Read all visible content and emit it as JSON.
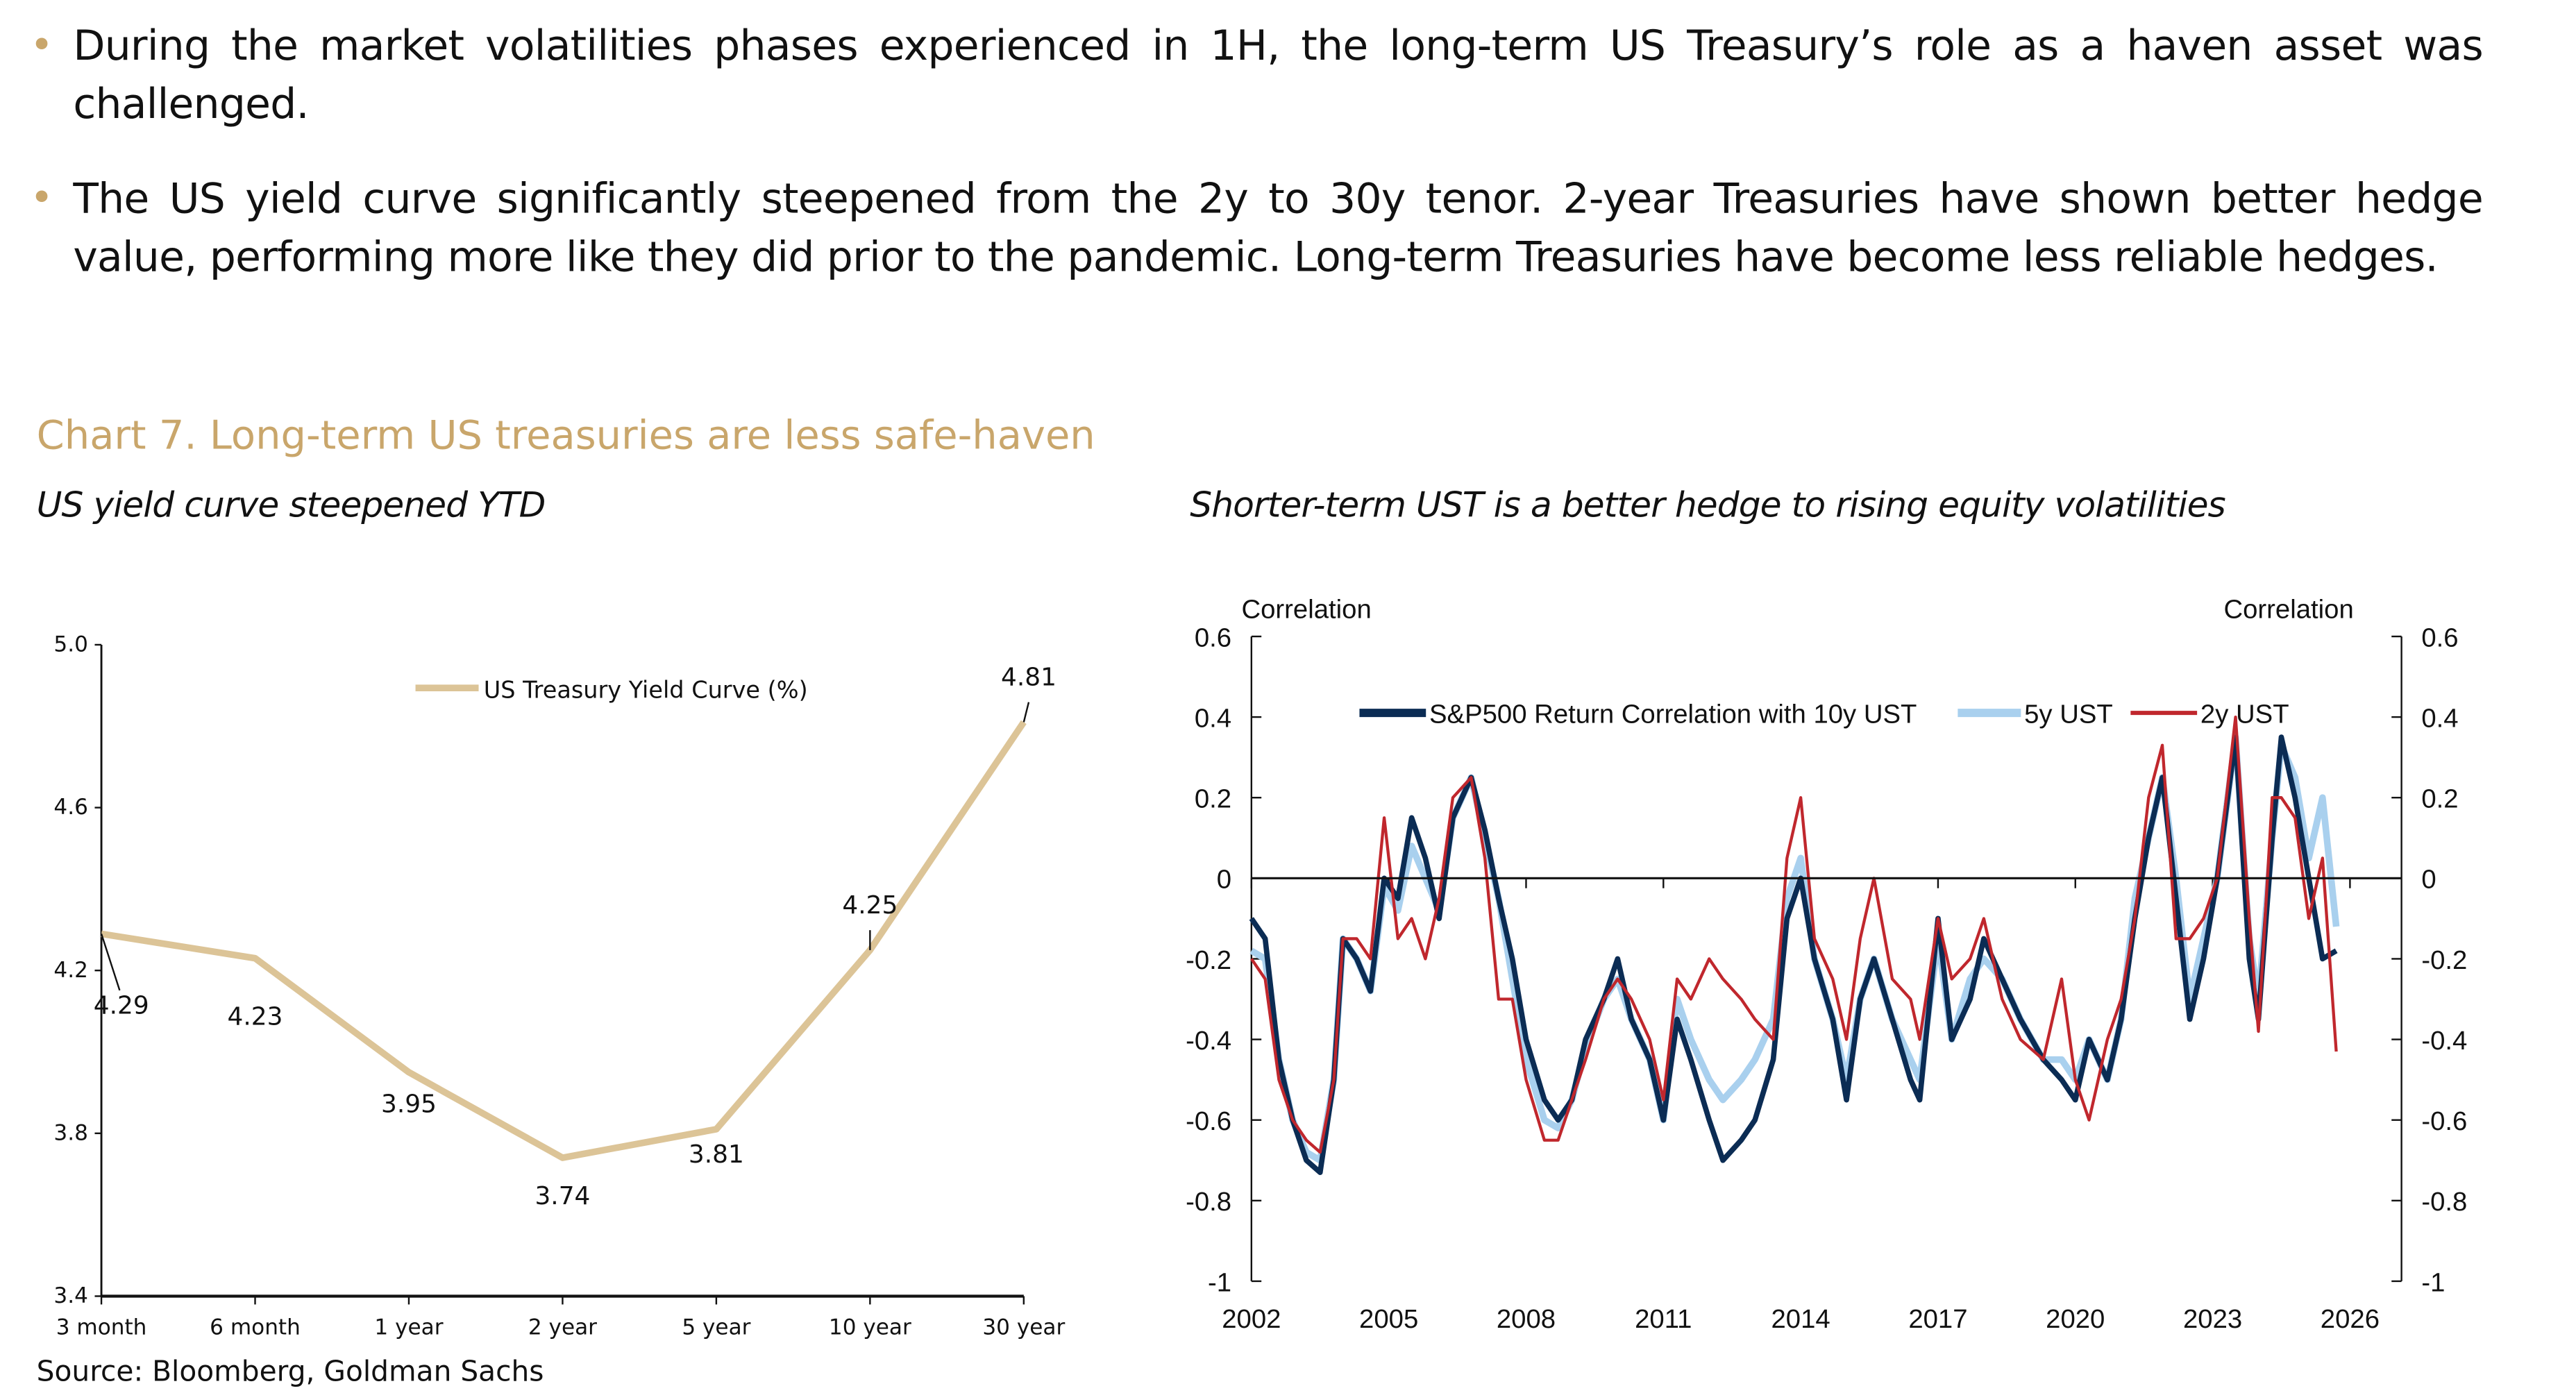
{
  "bullets": [
    "During the market volatilities phases experienced in 1H, the long-term US Treasury’s role as a haven asset was challenged.",
    "The US yield curve significantly steepened from the 2y to 30y tenor. 2-year Treasuries have shown better hedge value, performing more like they did prior to the pandemic. Long-term Treasuries have become less reliable hedges."
  ],
  "chart_title": "Chart 7. Long-term US treasuries are less safe-haven",
  "source": "Source: Bloomberg, Goldman Sachs",
  "colors": {
    "accent": "#C9A66B",
    "yield_line": "#DCC497",
    "navy": "#0B2C54",
    "light_blue": "#A9D0EE",
    "red": "#C0272D"
  },
  "chart_data": [
    {
      "type": "line",
      "title": "US yield curve steepened YTD",
      "categories": [
        "3 month",
        "6 month",
        "1 year",
        "2 year",
        "5 year",
        "10 year",
        "30 year"
      ],
      "series": [
        {
          "name": "US Treasury Yield Curve (%)",
          "values": [
            4.29,
            4.23,
            3.95,
            3.74,
            3.81,
            4.25,
            4.81
          ]
        }
      ],
      "ylim": [
        3.4,
        5.0
      ],
      "yticks": [
        "3.4",
        "3.8",
        "4.2",
        "4.6",
        "5.0"
      ],
      "legend": "top-center",
      "data_labels": true
    },
    {
      "type": "line",
      "title": "Shorter-term UST is a better hedge to rising equity volatilities",
      "ylabel_left": "Correlation",
      "ylabel_right": "Correlation",
      "ylim": [
        -1,
        0.6
      ],
      "yticks": [
        "0.6",
        "0.4",
        "0.2",
        "0",
        "-0.2",
        "-0.4",
        "-0.6",
        "-0.8",
        "-1"
      ],
      "xlim": [
        2002,
        2026
      ],
      "xticks": [
        "2002",
        "2005",
        "2008",
        "2011",
        "2014",
        "2017",
        "2020",
        "2023",
        "2026"
      ],
      "legend": "top-center",
      "series": [
        {
          "name": "S&P500 Return Correlation with 10y UST",
          "color": "#0B2C54",
          "x": [
            2002.0,
            2002.3,
            2002.6,
            2002.9,
            2003.2,
            2003.5,
            2003.8,
            2004.0,
            2004.3,
            2004.6,
            2004.9,
            2005.2,
            2005.5,
            2005.8,
            2006.1,
            2006.4,
            2006.8,
            2007.1,
            2007.4,
            2007.7,
            2008.0,
            2008.4,
            2008.7,
            2009.0,
            2009.3,
            2009.7,
            2010.0,
            2010.3,
            2010.7,
            2011.0,
            2011.3,
            2011.6,
            2012.0,
            2012.3,
            2012.7,
            2013.0,
            2013.4,
            2013.7,
            2014.0,
            2014.3,
            2014.7,
            2015.0,
            2015.3,
            2015.6,
            2016.0,
            2016.4,
            2016.6,
            2017.0,
            2017.3,
            2017.7,
            2018.0,
            2018.4,
            2018.8,
            2019.3,
            2019.7,
            2020.0,
            2020.3,
            2020.7,
            2021.0,
            2021.3,
            2021.6,
            2021.9,
            2022.2,
            2022.5,
            2022.8,
            2023.1,
            2023.5,
            2023.8,
            2024.0,
            2024.3,
            2024.5,
            2024.8,
            2025.1,
            2025.4,
            2025.7
          ],
          "values": [
            -0.1,
            -0.15,
            -0.45,
            -0.6,
            -0.7,
            -0.73,
            -0.5,
            -0.15,
            -0.2,
            -0.28,
            0.0,
            -0.05,
            0.15,
            0.05,
            -0.1,
            0.15,
            0.25,
            0.12,
            -0.05,
            -0.2,
            -0.4,
            -0.55,
            -0.6,
            -0.55,
            -0.4,
            -0.3,
            -0.2,
            -0.35,
            -0.45,
            -0.6,
            -0.35,
            -0.45,
            -0.6,
            -0.7,
            -0.65,
            -0.6,
            -0.45,
            -0.1,
            0.0,
            -0.2,
            -0.35,
            -0.55,
            -0.3,
            -0.2,
            -0.35,
            -0.5,
            -0.55,
            -0.1,
            -0.4,
            -0.3,
            -0.15,
            -0.25,
            -0.35,
            -0.45,
            -0.5,
            -0.55,
            -0.4,
            -0.5,
            -0.35,
            -0.1,
            0.1,
            0.25,
            -0.05,
            -0.35,
            -0.2,
            0.0,
            0.35,
            -0.2,
            -0.35,
            0.1,
            0.35,
            0.2,
            0.0,
            -0.2,
            -0.18
          ]
        },
        {
          "name": "5y UST",
          "color": "#A9D0EE",
          "x": [
            2002.0,
            2002.3,
            2002.6,
            2002.9,
            2003.2,
            2003.5,
            2003.8,
            2004.0,
            2004.3,
            2004.6,
            2004.9,
            2005.2,
            2005.5,
            2005.8,
            2006.1,
            2006.4,
            2006.8,
            2007.1,
            2007.4,
            2007.7,
            2008.0,
            2008.4,
            2008.7,
            2009.0,
            2009.3,
            2009.7,
            2010.0,
            2010.3,
            2010.7,
            2011.0,
            2011.3,
            2011.6,
            2012.0,
            2012.3,
            2012.7,
            2013.0,
            2013.4,
            2013.7,
            2014.0,
            2014.3,
            2014.7,
            2015.0,
            2015.3,
            2015.6,
            2016.0,
            2016.4,
            2016.6,
            2017.0,
            2017.3,
            2017.7,
            2018.0,
            2018.4,
            2018.8,
            2019.3,
            2019.7,
            2020.0,
            2020.3,
            2020.7,
            2021.0,
            2021.3,
            2021.6,
            2021.9,
            2022.2,
            2022.5,
            2022.8,
            2023.1,
            2023.5,
            2023.8,
            2024.0,
            2024.3,
            2024.5,
            2024.8,
            2025.1,
            2025.4,
            2025.7
          ],
          "values": [
            -0.18,
            -0.2,
            -0.45,
            -0.6,
            -0.68,
            -0.7,
            -0.5,
            -0.15,
            -0.2,
            -0.28,
            -0.02,
            -0.08,
            0.08,
            0.0,
            -0.08,
            0.15,
            0.25,
            0.1,
            -0.05,
            -0.25,
            -0.45,
            -0.6,
            -0.62,
            -0.55,
            -0.42,
            -0.3,
            -0.25,
            -0.35,
            -0.45,
            -0.6,
            -0.3,
            -0.4,
            -0.5,
            -0.55,
            -0.5,
            -0.45,
            -0.35,
            -0.05,
            0.05,
            -0.2,
            -0.35,
            -0.5,
            -0.3,
            -0.2,
            -0.35,
            -0.45,
            -0.5,
            -0.15,
            -0.4,
            -0.25,
            -0.2,
            -0.25,
            -0.35,
            -0.45,
            -0.45,
            -0.5,
            -0.4,
            -0.5,
            -0.35,
            -0.05,
            0.1,
            0.25,
            0.0,
            -0.3,
            -0.15,
            0.0,
            0.35,
            -0.15,
            -0.3,
            0.1,
            0.33,
            0.25,
            0.05,
            0.2,
            -0.12
          ]
        },
        {
          "name": "2y UST",
          "color": "#C0272D",
          "x": [
            2002.0,
            2002.3,
            2002.6,
            2002.9,
            2003.2,
            2003.5,
            2003.8,
            2004.0,
            2004.3,
            2004.6,
            2004.9,
            2005.2,
            2005.5,
            2005.8,
            2006.1,
            2006.4,
            2006.8,
            2007.1,
            2007.4,
            2007.7,
            2008.0,
            2008.4,
            2008.7,
            2009.0,
            2009.3,
            2009.7,
            2010.0,
            2010.3,
            2010.7,
            2011.0,
            2011.3,
            2011.6,
            2012.0,
            2012.3,
            2012.7,
            2013.0,
            2013.4,
            2013.7,
            2014.0,
            2014.3,
            2014.7,
            2015.0,
            2015.3,
            2015.6,
            2016.0,
            2016.4,
            2016.6,
            2017.0,
            2017.3,
            2017.7,
            2018.0,
            2018.4,
            2018.8,
            2019.3,
            2019.7,
            2020.0,
            2020.3,
            2020.7,
            2021.0,
            2021.3,
            2021.6,
            2021.9,
            2022.2,
            2022.5,
            2022.8,
            2023.1,
            2023.5,
            2023.8,
            2024.0,
            2024.3,
            2024.5,
            2024.8,
            2025.1,
            2025.4,
            2025.7
          ],
          "values": [
            -0.2,
            -0.25,
            -0.5,
            -0.6,
            -0.65,
            -0.68,
            -0.5,
            -0.15,
            -0.15,
            -0.2,
            0.15,
            -0.15,
            -0.1,
            -0.2,
            -0.05,
            0.2,
            0.25,
            0.05,
            -0.3,
            -0.3,
            -0.5,
            -0.65,
            -0.65,
            -0.55,
            -0.45,
            -0.3,
            -0.25,
            -0.3,
            -0.4,
            -0.55,
            -0.25,
            -0.3,
            -0.2,
            -0.25,
            -0.3,
            -0.35,
            -0.4,
            0.05,
            0.2,
            -0.15,
            -0.25,
            -0.4,
            -0.15,
            0.0,
            -0.25,
            -0.3,
            -0.4,
            -0.1,
            -0.25,
            -0.2,
            -0.1,
            -0.3,
            -0.4,
            -0.45,
            -0.25,
            -0.5,
            -0.6,
            -0.4,
            -0.3,
            -0.1,
            0.2,
            0.33,
            -0.15,
            -0.15,
            -0.1,
            0.0,
            0.4,
            -0.1,
            -0.38,
            0.2,
            0.2,
            0.15,
            -0.1,
            0.05,
            -0.43
          ]
        }
      ]
    }
  ]
}
